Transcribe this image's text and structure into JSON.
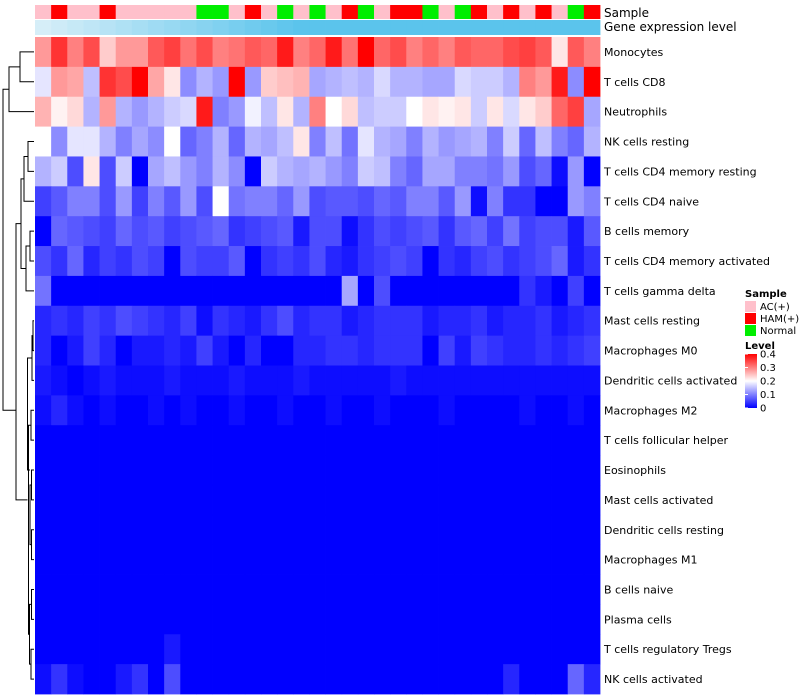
{
  "chart_data": {
    "type": "heatmap",
    "title": "",
    "annotation_labels": {
      "sample": "Sample",
      "expression": "Gene expression level"
    },
    "color_scale": {
      "min": 0,
      "mid": 0.2,
      "max": 0.4,
      "low_color": "#0000ff",
      "mid_color": "#ffffff",
      "high_color": "#ff0000"
    },
    "sample_palette": {
      "AC(+)": "#ffc0cb",
      "HAM(+)": "#ff0000",
      "Normal": "#00ee00"
    },
    "expression_bar_color": "#5bc4ec",
    "expression_bar_fade_color": "#d6eef8",
    "legend": {
      "sample_title": "Sample",
      "sample_entries": [
        "AC(+)",
        "HAM(+)",
        "Normal"
      ],
      "level_title": "Level",
      "level_ticks": [
        "0.4",
        "0.3",
        "0.2",
        "0.1",
        "0"
      ]
    },
    "samples": [
      "AC(+)",
      "HAM(+)",
      "AC(+)",
      "AC(+)",
      "HAM(+)",
      "AC(+)",
      "AC(+)",
      "AC(+)",
      "AC(+)",
      "AC(+)",
      "Normal",
      "Normal",
      "AC(+)",
      "HAM(+)",
      "AC(+)",
      "Normal",
      "AC(+)",
      "Normal",
      "AC(+)",
      "HAM(+)",
      "Normal",
      "AC(+)",
      "HAM(+)",
      "HAM(+)",
      "Normal",
      "AC(+)",
      "Normal",
      "HAM(+)",
      "AC(+)",
      "HAM(+)",
      "AC(+)",
      "HAM(+)",
      "AC(+)",
      "Normal",
      "HAM(+)"
    ],
    "rows": [
      "Monocytes",
      "T cells CD8",
      "Neutrophils",
      "NK cells resting",
      "T cells CD4 memory resting",
      "T cells CD4 naive",
      "B cells memory",
      "T cells CD4 memory activated",
      "T cells gamma delta",
      "Mast cells resting",
      "Macrophages M0",
      "Dendritic cells activated",
      "Macrophages M2",
      "T cells follicular helper",
      "Eosinophils",
      "Mast cells activated",
      "Dendritic cells resting",
      "Macrophages M1",
      "B cells naive",
      "Plasma cells",
      "T cells regulatory  Tregs",
      "NK cells activated"
    ],
    "values": [
      [
        0.28,
        0.36,
        0.3,
        0.34,
        0.24,
        0.28,
        0.28,
        0.33,
        0.35,
        0.31,
        0.34,
        0.3,
        0.31,
        0.33,
        0.32,
        0.38,
        0.3,
        0.32,
        0.38,
        0.31,
        0.4,
        0.32,
        0.34,
        0.3,
        0.32,
        0.3,
        0.33,
        0.32,
        0.32,
        0.34,
        0.35,
        0.33,
        0.22,
        0.33,
        0.3
      ],
      [
        0.18,
        0.28,
        0.27,
        0.15,
        0.36,
        0.34,
        0.4,
        0.27,
        0.22,
        0.11,
        0.14,
        0.12,
        0.4,
        0.12,
        0.24,
        0.25,
        0.26,
        0.13,
        0.14,
        0.15,
        0.14,
        0.17,
        0.14,
        0.14,
        0.13,
        0.13,
        0.17,
        0.16,
        0.16,
        0.14,
        0.3,
        0.28,
        0.38,
        0.11,
        0.4
      ],
      [
        0.26,
        0.21,
        0.23,
        0.14,
        0.28,
        0.14,
        0.12,
        0.14,
        0.16,
        0.17,
        0.38,
        0.1,
        0.12,
        0.19,
        0.15,
        0.22,
        0.14,
        0.3,
        0.2,
        0.23,
        0.15,
        0.16,
        0.16,
        0.2,
        0.22,
        0.21,
        0.22,
        0.16,
        0.22,
        0.17,
        0.22,
        0.24,
        0.32,
        0.35,
        0.13
      ],
      [
        0.2,
        0.11,
        0.18,
        0.18,
        0.14,
        0.1,
        0.13,
        0.11,
        0.2,
        0.08,
        0.1,
        0.14,
        0.08,
        0.14,
        0.13,
        0.15,
        0.22,
        0.1,
        0.15,
        0.09,
        0.18,
        0.14,
        0.13,
        0.1,
        0.14,
        0.12,
        0.13,
        0.14,
        0.1,
        0.16,
        0.08,
        0.15,
        0.1,
        0.08,
        0.14
      ],
      [
        0.14,
        0.16,
        0.06,
        0.22,
        0.06,
        0.16,
        0.0,
        0.13,
        0.15,
        0.12,
        0.1,
        0.14,
        0.11,
        0.0,
        0.16,
        0.14,
        0.13,
        0.14,
        0.12,
        0.1,
        0.16,
        0.15,
        0.1,
        0.08,
        0.13,
        0.13,
        0.1,
        0.1,
        0.09,
        0.12,
        0.06,
        0.08,
        0.01,
        0.12,
        0.0
      ],
      [
        0.05,
        0.07,
        0.1,
        0.1,
        0.06,
        0.12,
        0.05,
        0.1,
        0.07,
        0.12,
        0.06,
        0.2,
        0.09,
        0.1,
        0.1,
        0.08,
        0.12,
        0.06,
        0.07,
        0.07,
        0.06,
        0.08,
        0.07,
        0.1,
        0.1,
        0.07,
        0.12,
        0.01,
        0.1,
        0.04,
        0.04,
        0.0,
        0.0,
        0.12,
        0.1
      ],
      [
        0.0,
        0.08,
        0.07,
        0.06,
        0.05,
        0.08,
        0.06,
        0.07,
        0.05,
        0.06,
        0.07,
        0.08,
        0.04,
        0.05,
        0.06,
        0.07,
        0.02,
        0.06,
        0.06,
        0.01,
        0.04,
        0.06,
        0.05,
        0.06,
        0.07,
        0.04,
        0.07,
        0.08,
        0.05,
        0.09,
        0.05,
        0.06,
        0.06,
        0.02,
        0.07
      ],
      [
        0.06,
        0.04,
        0.08,
        0.03,
        0.05,
        0.04,
        0.06,
        0.05,
        0.0,
        0.06,
        0.05,
        0.05,
        0.07,
        0.0,
        0.04,
        0.05,
        0.04,
        0.06,
        0.03,
        0.02,
        0.04,
        0.05,
        0.06,
        0.05,
        0.0,
        0.04,
        0.03,
        0.05,
        0.06,
        0.04,
        0.05,
        0.06,
        0.08,
        0.02,
        0.04
      ],
      [
        0.09,
        0.0,
        0.0,
        0.0,
        0.0,
        0.0,
        0.0,
        0.0,
        0.0,
        0.0,
        0.0,
        0.0,
        0.0,
        0.0,
        0.0,
        0.0,
        0.0,
        0.0,
        0.0,
        0.13,
        0.0,
        0.06,
        0.0,
        0.0,
        0.0,
        0.0,
        0.0,
        0.0,
        0.0,
        0.0,
        0.04,
        0.02,
        0.0,
        0.05,
        0.0
      ],
      [
        0.03,
        0.04,
        0.03,
        0.05,
        0.04,
        0.06,
        0.05,
        0.04,
        0.03,
        0.05,
        0.01,
        0.04,
        0.03,
        0.02,
        0.04,
        0.06,
        0.03,
        0.04,
        0.04,
        0.02,
        0.03,
        0.04,
        0.04,
        0.04,
        0.02,
        0.03,
        0.03,
        0.04,
        0.02,
        0.03,
        0.03,
        0.04,
        0.02,
        0.03,
        0.04
      ],
      [
        0.03,
        0.0,
        0.02,
        0.05,
        0.03,
        0.0,
        0.02,
        0.02,
        0.03,
        0.02,
        0.05,
        0.02,
        0.0,
        0.03,
        0.0,
        0.0,
        0.03,
        0.03,
        0.04,
        0.04,
        0.03,
        0.04,
        0.04,
        0.04,
        0.0,
        0.05,
        0.02,
        0.05,
        0.04,
        0.03,
        0.03,
        0.04,
        0.03,
        0.04,
        0.05
      ],
      [
        0.02,
        0.01,
        0.0,
        0.01,
        0.02,
        0.01,
        0.01,
        0.01,
        0.02,
        0.01,
        0.01,
        0.01,
        0.02,
        0.01,
        0.01,
        0.01,
        0.02,
        0.01,
        0.01,
        0.01,
        0.01,
        0.01,
        0.02,
        0.01,
        0.01,
        0.01,
        0.01,
        0.01,
        0.01,
        0.01,
        0.01,
        0.01,
        0.01,
        0.01,
        0.01
      ],
      [
        0.01,
        0.03,
        0.01,
        0.0,
        0.01,
        0.0,
        0.0,
        0.01,
        0.0,
        0.01,
        0.0,
        0.0,
        0.01,
        0.0,
        0.0,
        0.01,
        0.0,
        0.0,
        0.01,
        0.0,
        0.0,
        0.01,
        0.0,
        0.0,
        0.0,
        0.01,
        0.0,
        0.0,
        0.0,
        0.0,
        0.01,
        0.0,
        0.0,
        0.01,
        0.0
      ],
      [
        0.0,
        0.0,
        0.0,
        0.0,
        0.0,
        0.0,
        0.0,
        0.0,
        0.0,
        0.0,
        0.0,
        0.0,
        0.0,
        0.0,
        0.0,
        0.0,
        0.0,
        0.0,
        0.0,
        0.0,
        0.0,
        0.0,
        0.0,
        0.0,
        0.0,
        0.0,
        0.0,
        0.0,
        0.0,
        0.0,
        0.0,
        0.0,
        0.0,
        0.0,
        0.0
      ],
      [
        0.0,
        0.0,
        0.0,
        0.0,
        0.0,
        0.0,
        0.0,
        0.0,
        0.0,
        0.0,
        0.0,
        0.0,
        0.0,
        0.0,
        0.0,
        0.0,
        0.0,
        0.0,
        0.0,
        0.0,
        0.0,
        0.0,
        0.0,
        0.0,
        0.0,
        0.0,
        0.0,
        0.0,
        0.0,
        0.0,
        0.0,
        0.0,
        0.0,
        0.0,
        0.0
      ],
      [
        0.0,
        0.0,
        0.0,
        0.0,
        0.0,
        0.0,
        0.0,
        0.0,
        0.0,
        0.0,
        0.0,
        0.0,
        0.0,
        0.0,
        0.0,
        0.0,
        0.0,
        0.0,
        0.0,
        0.0,
        0.0,
        0.0,
        0.0,
        0.0,
        0.0,
        0.0,
        0.0,
        0.0,
        0.0,
        0.0,
        0.0,
        0.0,
        0.0,
        0.0,
        0.0
      ],
      [
        0.0,
        0.0,
        0.0,
        0.0,
        0.0,
        0.0,
        0.0,
        0.0,
        0.0,
        0.0,
        0.0,
        0.0,
        0.0,
        0.0,
        0.0,
        0.0,
        0.0,
        0.0,
        0.0,
        0.0,
        0.0,
        0.0,
        0.0,
        0.0,
        0.0,
        0.0,
        0.0,
        0.0,
        0.0,
        0.0,
        0.0,
        0.0,
        0.0,
        0.0,
        0.0
      ],
      [
        0.0,
        0.0,
        0.0,
        0.0,
        0.0,
        0.0,
        0.0,
        0.0,
        0.0,
        0.0,
        0.0,
        0.0,
        0.0,
        0.0,
        0.0,
        0.0,
        0.0,
        0.0,
        0.0,
        0.0,
        0.0,
        0.0,
        0.0,
        0.0,
        0.0,
        0.0,
        0.0,
        0.0,
        0.0,
        0.0,
        0.0,
        0.0,
        0.0,
        0.0,
        0.0
      ],
      [
        0.0,
        0.0,
        0.0,
        0.0,
        0.0,
        0.0,
        0.0,
        0.0,
        0.0,
        0.0,
        0.0,
        0.0,
        0.0,
        0.0,
        0.0,
        0.0,
        0.0,
        0.0,
        0.0,
        0.0,
        0.0,
        0.0,
        0.0,
        0.0,
        0.0,
        0.0,
        0.0,
        0.0,
        0.0,
        0.0,
        0.0,
        0.0,
        0.0,
        0.0,
        0.0
      ],
      [
        0.0,
        0.0,
        0.0,
        0.0,
        0.0,
        0.0,
        0.0,
        0.0,
        0.0,
        0.0,
        0.0,
        0.0,
        0.0,
        0.0,
        0.0,
        0.0,
        0.0,
        0.0,
        0.0,
        0.0,
        0.0,
        0.0,
        0.0,
        0.0,
        0.0,
        0.0,
        0.0,
        0.0,
        0.0,
        0.0,
        0.0,
        0.0,
        0.0,
        0.0,
        0.0
      ],
      [
        0.0,
        0.0,
        0.0,
        0.0,
        0.0,
        0.0,
        0.0,
        0.0,
        0.02,
        0.0,
        0.0,
        0.0,
        0.0,
        0.0,
        0.0,
        0.0,
        0.0,
        0.0,
        0.0,
        0.0,
        0.0,
        0.0,
        0.0,
        0.0,
        0.0,
        0.0,
        0.0,
        0.0,
        0.0,
        0.0,
        0.0,
        0.0,
        0.0,
        0.0,
        0.0
      ],
      [
        0.01,
        0.04,
        0.01,
        0.0,
        0.0,
        0.02,
        0.04,
        0.0,
        0.06,
        0.0,
        0.0,
        0.0,
        0.0,
        0.0,
        0.0,
        0.0,
        0.0,
        0.0,
        0.0,
        0.0,
        0.0,
        0.0,
        0.0,
        0.0,
        0.0,
        0.0,
        0.0,
        0.0,
        0.0,
        0.03,
        0.0,
        0.0,
        0.0,
        0.08,
        0.03
      ]
    ],
    "row_dendrogram": [
      {
        "merge": [
          "Monocytes",
          "T cells CD8"
        ],
        "height": 0.28
      },
      {
        "merge": [
          "NK cells resting",
          "T cells CD4 memory resting"
        ],
        "height": 0.14
      },
      {
        "merge": [
          "B cells memory",
          "T cells CD4 memory activated"
        ],
        "height": 0.1
      },
      {
        "merge": [
          "Dendritic cells activated",
          "Macrophages M2"
        ],
        "height": 0.04
      },
      {
        "merge": [
          "Eosinophils",
          "Mast cells activated"
        ],
        "height": 0.02
      },
      {
        "merge": [
          "Macrophages M1",
          "B cells naive"
        ],
        "height": 0.02
      }
    ]
  }
}
